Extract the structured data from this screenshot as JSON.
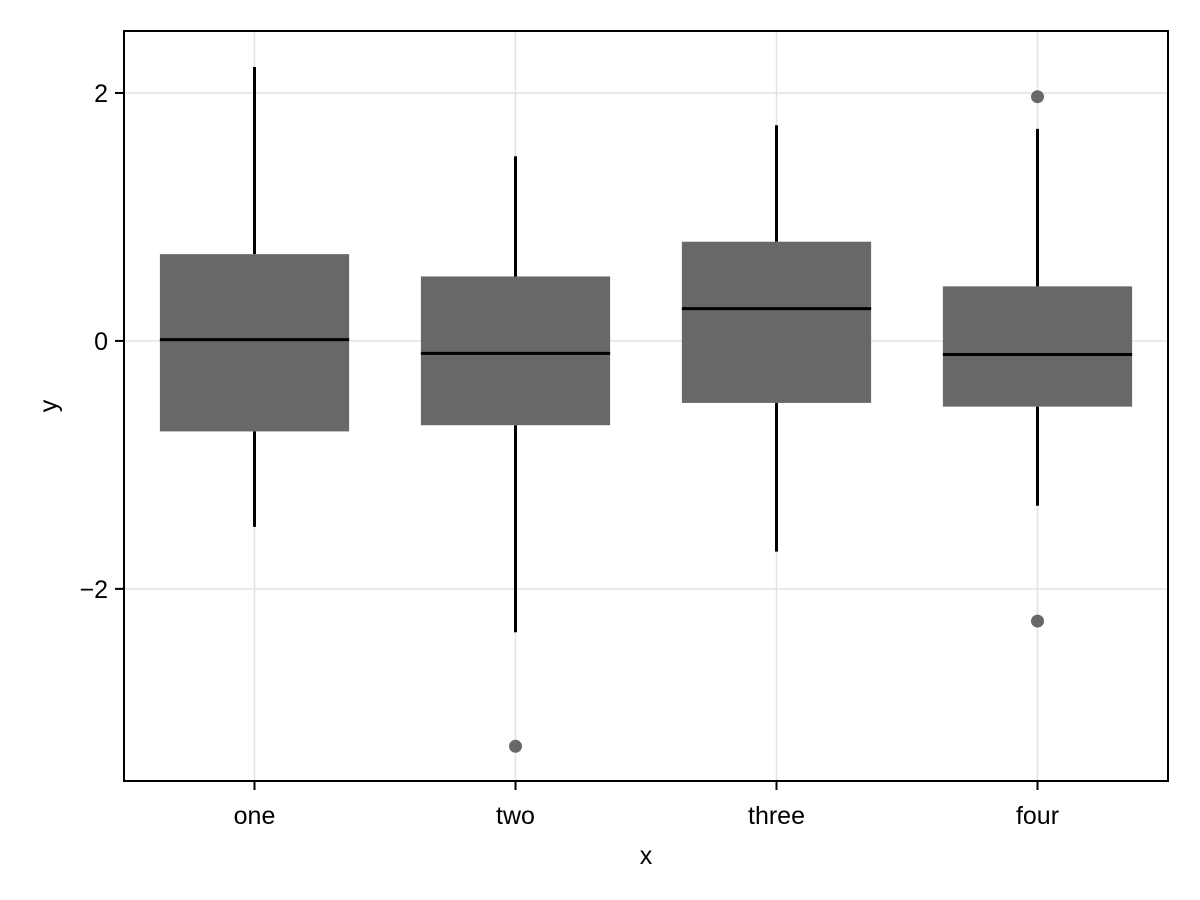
{
  "chart_data": {
    "type": "box",
    "categories": [
      "one",
      "two",
      "three",
      "four"
    ],
    "xlabel": "x",
    "ylabel": "y",
    "yticks": [
      -2,
      0,
      2
    ],
    "ytick_labels": [
      "−2",
      "0",
      "2"
    ],
    "ylim": [
      -3.55,
      2.5
    ],
    "grid": true,
    "box_color": "#686868",
    "outlier_color": "#686868",
    "boxes": [
      {
        "category": "one",
        "whisker_low": -1.5,
        "q1": -0.73,
        "median": 0.01,
        "q3": 0.7,
        "whisker_high": 2.21,
        "outliers": []
      },
      {
        "category": "two",
        "whisker_low": -2.35,
        "q1": -0.68,
        "median": -0.1,
        "q3": 0.52,
        "whisker_high": 1.49,
        "outliers": [
          -3.27
        ]
      },
      {
        "category": "three",
        "whisker_low": -1.7,
        "q1": -0.5,
        "median": 0.26,
        "q3": 0.8,
        "whisker_high": 1.74,
        "outliers": []
      },
      {
        "category": "four",
        "whisker_low": -1.33,
        "q1": -0.53,
        "median": -0.11,
        "q3": 0.44,
        "whisker_high": 1.71,
        "outliers": [
          1.97,
          -2.26
        ]
      }
    ]
  }
}
